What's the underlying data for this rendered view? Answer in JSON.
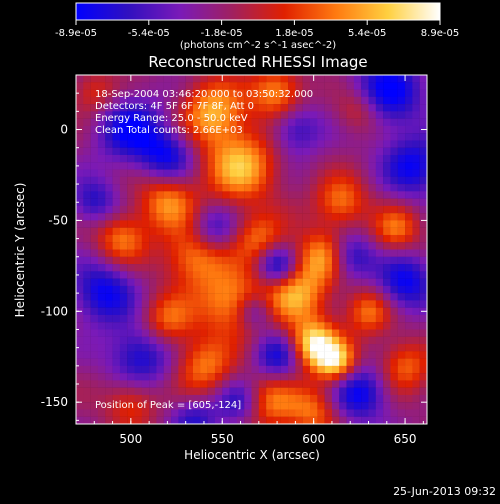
{
  "chart_data": {
    "type": "heatmap",
    "title": "Reconstructed RHESSI Image",
    "xlabel": "Heliocentric X (arcsec)",
    "ylabel": "Heliocentric Y (arcsec)",
    "xlim": [
      470,
      662
    ],
    "ylim": [
      -162,
      30
    ],
    "x_ticks": [
      500,
      550,
      600,
      650
    ],
    "y_ticks": [
      0,
      -50,
      -100,
      -150
    ],
    "colorbar": {
      "min": -8.9e-05,
      "max": 8.9e-05,
      "tick_labels": [
        "-8.9e-05",
        "-5.4e-05",
        "-1.8e-05",
        "1.8e-05",
        "5.4e-05",
        "8.9e-05"
      ],
      "unit_label": "(photons cm^-2 s^-1 asec^-2)",
      "colors": [
        "#0000ff",
        "#3010c0",
        "#7a1ab8",
        "#a02060",
        "#e02000",
        "#ff7a10",
        "#ffd040",
        "#ffffff"
      ]
    },
    "annotations": [
      "18-Sep-2004 03:46:20.000 to 03:50:32.000",
      "Detectors: 4F 5F 6F 7F 8F, Att 0",
      "Energy Range: 25.0 - 50.0 keV",
      "Clean     Total counts: 2.66E+03"
    ],
    "peak_label": "Position of Peak = [605,-124]",
    "peak": [
      605,
      -124
    ],
    "sources": [
      {
        "x": 600,
        "y": -118,
        "amp": 1.0,
        "r": 9
      },
      {
        "x": 612,
        "y": -128,
        "amp": 0.9,
        "r": 8
      },
      {
        "x": 590,
        "y": -90,
        "amp": 0.75,
        "r": 12
      },
      {
        "x": 605,
        "y": -70,
        "amp": 0.7,
        "r": 10
      },
      {
        "x": 560,
        "y": -20,
        "amp": 0.8,
        "r": 14
      },
      {
        "x": 545,
        "y": 10,
        "amp": 0.75,
        "r": 12
      },
      {
        "x": 580,
        "y": 20,
        "amp": 0.7,
        "r": 10
      },
      {
        "x": 520,
        "y": -40,
        "amp": 0.65,
        "r": 11
      },
      {
        "x": 495,
        "y": -60,
        "amp": 0.6,
        "r": 10
      },
      {
        "x": 535,
        "y": -70,
        "amp": 0.65,
        "r": 12
      },
      {
        "x": 555,
        "y": -95,
        "amp": 0.7,
        "r": 13
      },
      {
        "x": 540,
        "y": -130,
        "amp": 0.6,
        "r": 11
      },
      {
        "x": 520,
        "y": -105,
        "amp": 0.55,
        "r": 10
      },
      {
        "x": 575,
        "y": -150,
        "amp": 0.6,
        "r": 11
      },
      {
        "x": 630,
        "y": -100,
        "amp": 0.6,
        "r": 9
      },
      {
        "x": 645,
        "y": -55,
        "amp": 0.55,
        "r": 9
      },
      {
        "x": 650,
        "y": -130,
        "amp": 0.55,
        "r": 10
      },
      {
        "x": 615,
        "y": -40,
        "amp": 0.6,
        "r": 10
      },
      {
        "x": 625,
        "y": 10,
        "amp": 0.45,
        "r": 9
      },
      {
        "x": 500,
        "y": -150,
        "amp": 0.45,
        "r": 10
      },
      {
        "x": 480,
        "y": 20,
        "amp": 0.4,
        "r": 9
      },
      {
        "x": 600,
        "y": -155,
        "amp": 0.55,
        "r": 10
      },
      {
        "x": 570,
        "y": -60,
        "amp": 0.55,
        "r": 10
      }
    ],
    "sinks": [
      {
        "x": 580,
        "y": -75,
        "amp": 0.9,
        "r": 8
      },
      {
        "x": 568,
        "y": -100,
        "amp": 0.6,
        "r": 7
      },
      {
        "x": 500,
        "y": 0,
        "amp": 0.8,
        "r": 13
      },
      {
        "x": 520,
        "y": -15,
        "amp": 0.7,
        "r": 10
      },
      {
        "x": 485,
        "y": -90,
        "amp": 0.8,
        "r": 12
      },
      {
        "x": 505,
        "y": -125,
        "amp": 0.75,
        "r": 12
      },
      {
        "x": 640,
        "y": 20,
        "amp": 0.85,
        "r": 14
      },
      {
        "x": 655,
        "y": -20,
        "amp": 0.75,
        "r": 12
      },
      {
        "x": 650,
        "y": -85,
        "amp": 0.8,
        "r": 11
      },
      {
        "x": 620,
        "y": -70,
        "amp": 0.75,
        "r": 9
      },
      {
        "x": 625,
        "y": -145,
        "amp": 0.8,
        "r": 11
      },
      {
        "x": 580,
        "y": -125,
        "amp": 0.7,
        "r": 9
      },
      {
        "x": 545,
        "y": -55,
        "amp": 0.6,
        "r": 9
      },
      {
        "x": 560,
        "y": -150,
        "amp": 0.65,
        "r": 9
      },
      {
        "x": 590,
        "y": 0,
        "amp": 0.6,
        "r": 10
      },
      {
        "x": 480,
        "y": -40,
        "amp": 0.6,
        "r": 9
      },
      {
        "x": 535,
        "y": -160,
        "amp": 0.55,
        "r": 9
      }
    ]
  },
  "footer": {
    "timestamp": "25-Jun-2013 09:32"
  }
}
